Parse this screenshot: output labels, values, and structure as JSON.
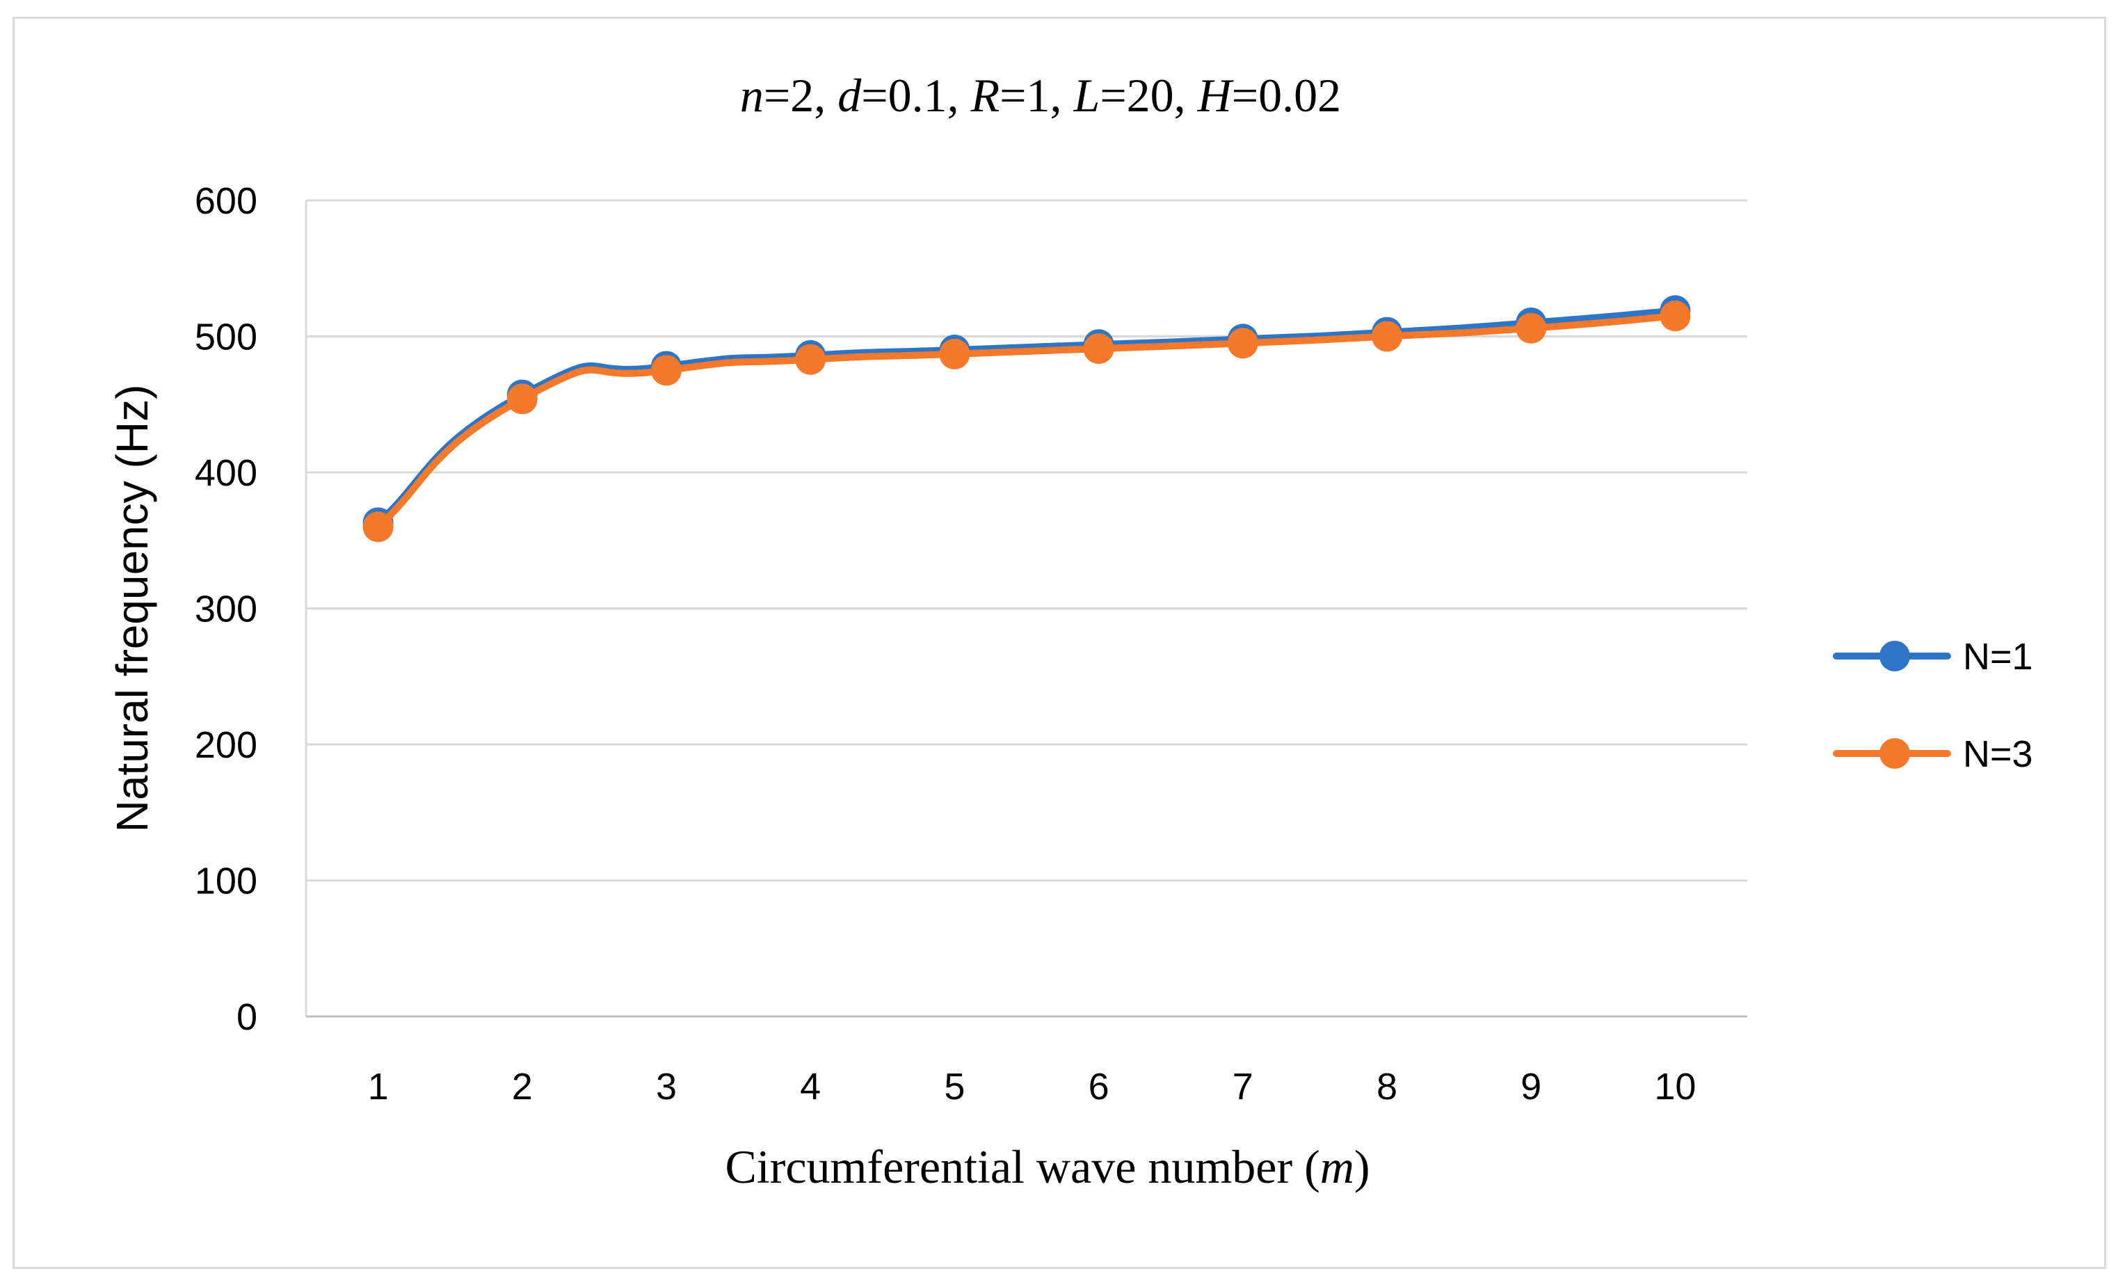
{
  "chart_data": {
    "type": "line",
    "title_parts": [
      {
        "text": "n",
        "italic": true
      },
      {
        "text": "=2, ",
        "italic": false
      },
      {
        "text": "d",
        "italic": true
      },
      {
        "text": "=0.1, ",
        "italic": false
      },
      {
        "text": "R",
        "italic": true
      },
      {
        "text": "=1, ",
        "italic": false
      },
      {
        "text": "L",
        "italic": true
      },
      {
        "text": "=20, ",
        "italic": false
      },
      {
        "text": "H",
        "italic": true
      },
      {
        "text": "=0.02",
        "italic": false
      }
    ],
    "xlabel_parts": [
      {
        "text": "Circumferential wave number (",
        "italic": false
      },
      {
        "text": "m",
        "italic": true
      },
      {
        "text": ")",
        "italic": false
      }
    ],
    "ylabel": "Natural frequency (Hz)",
    "categories": [
      "1",
      "2",
      "3",
      "4",
      "5",
      "6",
      "7",
      "8",
      "9",
      "10"
    ],
    "ylim": [
      0,
      600
    ],
    "yticks": [
      0,
      100,
      200,
      300,
      400,
      500,
      600
    ],
    "grid": true,
    "legend_position": "right",
    "smooth": true,
    "series": [
      {
        "name": "N=1",
        "color": "#2E75C6",
        "values": [
          363,
          457,
          478,
          486,
          490,
          494,
          498,
          503,
          510,
          519
        ]
      },
      {
        "name": "N=3",
        "color": "#F5792A",
        "values": [
          360,
          454,
          475,
          483,
          487,
          491,
          495,
          500,
          506,
          515
        ]
      }
    ]
  }
}
